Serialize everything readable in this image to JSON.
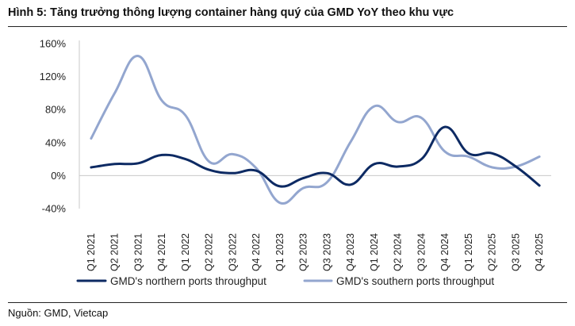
{
  "figure": {
    "title": "Hình 5: Tăng trưởng thông lượng container hàng quý của GMD YoY theo khu vực",
    "source": "Nguồn: GMD, Vietcap"
  },
  "chart_data": {
    "type": "line",
    "title": "Hình 5: Tăng trưởng thông lượng container hàng quý của GMD YoY theo khu vực",
    "xlabel": "",
    "ylabel": "",
    "ylim": [
      -40,
      160
    ],
    "yticks": [
      -40,
      0,
      40,
      80,
      120,
      160
    ],
    "ytick_labels": [
      "-40%",
      "0%",
      "40%",
      "80%",
      "120%",
      "160%"
    ],
    "grid": false,
    "legend_position": "bottom",
    "categories": [
      "Q1 2021",
      "Q2 2021",
      "Q3 2021",
      "Q4 2021",
      "Q1 2022",
      "Q2 2022",
      "Q3 2022",
      "Q4 2022",
      "Q1 2023",
      "Q2 2023",
      "Q3 2023",
      "Q4 2023",
      "Q1 2024",
      "Q2 2024",
      "Q3 2024",
      "Q4 2024",
      "Q1 2025",
      "Q2 2025",
      "Q3 2025",
      "Q4 2025"
    ],
    "series": [
      {
        "name": "GMD's northern ports throughput",
        "color": "#0d2a63",
        "values": [
          10,
          14,
          15,
          25,
          20,
          7,
          3,
          6,
          -13,
          -3,
          3,
          -11,
          14,
          11,
          20,
          59,
          27,
          27,
          11,
          -12
        ]
      },
      {
        "name": "GMD's southern ports throughput",
        "color": "#93a6cf",
        "values": [
          45,
          100,
          145,
          91,
          73,
          17,
          26,
          9,
          -33,
          -15,
          -8,
          41,
          84,
          65,
          70,
          29,
          23,
          10,
          11,
          23
        ]
      }
    ]
  }
}
